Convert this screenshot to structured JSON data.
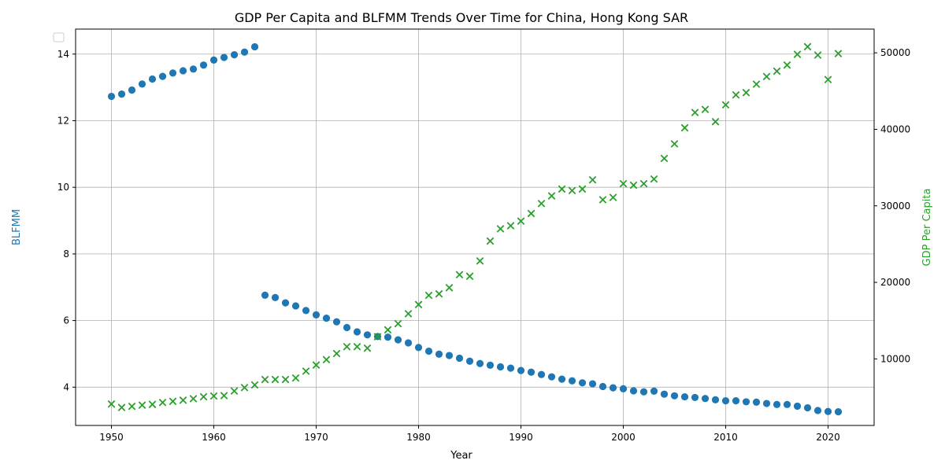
{
  "chart_data": {
    "type": "scatter",
    "title": "GDP Per Capita and BLFMM Trends Over Time for China, Hong Kong SAR",
    "xlabel": "Year",
    "ylabel_left": "BLFMM",
    "ylabel_right": "GDP Per Capita",
    "xlim": [
      1946.5,
      2024.5
    ],
    "ylim_left": [
      2.85,
      14.75
    ],
    "ylim_right": [
      1300,
      53100
    ],
    "x_ticks": [
      1950,
      1960,
      1970,
      1980,
      1990,
      2000,
      2010,
      2020
    ],
    "y_left_ticks": [
      4,
      6,
      8,
      10,
      12,
      14
    ],
    "y_right_ticks": [
      10000,
      20000,
      30000,
      40000,
      50000
    ],
    "grid": true,
    "legend": "upper-left (empty)",
    "colors": {
      "blfmm": "#1f77b4",
      "gdp": "#2ca02c"
    },
    "series": [
      {
        "key": "blfmm",
        "axis": "left",
        "marker": "circle",
        "points": [
          [
            1950,
            12.73
          ],
          [
            1951,
            12.8
          ],
          [
            1952,
            12.92
          ],
          [
            1953,
            13.1
          ],
          [
            1954,
            13.25
          ],
          [
            1955,
            13.33
          ],
          [
            1956,
            13.43
          ],
          [
            1957,
            13.5
          ],
          [
            1958,
            13.55
          ],
          [
            1959,
            13.67
          ],
          [
            1960,
            13.82
          ],
          [
            1961,
            13.9
          ],
          [
            1962,
            13.98
          ],
          [
            1963,
            14.06
          ],
          [
            1964,
            14.22
          ],
          [
            1965,
            6.76
          ],
          [
            1966,
            6.69
          ],
          [
            1967,
            6.53
          ],
          [
            1968,
            6.44
          ],
          [
            1969,
            6.3
          ],
          [
            1970,
            6.17
          ],
          [
            1971,
            6.07
          ],
          [
            1972,
            5.96
          ],
          [
            1973,
            5.79
          ],
          [
            1974,
            5.66
          ],
          [
            1975,
            5.57
          ],
          [
            1976,
            5.52
          ],
          [
            1977,
            5.5
          ],
          [
            1978,
            5.42
          ],
          [
            1979,
            5.33
          ],
          [
            1980,
            5.19
          ],
          [
            1981,
            5.08
          ],
          [
            1982,
            4.99
          ],
          [
            1983,
            4.95
          ],
          [
            1984,
            4.87
          ],
          [
            1985,
            4.78
          ],
          [
            1986,
            4.71
          ],
          [
            1987,
            4.66
          ],
          [
            1988,
            4.61
          ],
          [
            1989,
            4.57
          ],
          [
            1990,
            4.5
          ],
          [
            1991,
            4.45
          ],
          [
            1992,
            4.38
          ],
          [
            1993,
            4.31
          ],
          [
            1994,
            4.24
          ],
          [
            1995,
            4.19
          ],
          [
            1996,
            4.13
          ],
          [
            1997,
            4.1
          ],
          [
            1998,
            4.02
          ],
          [
            1999,
            3.98
          ],
          [
            2000,
            3.95
          ],
          [
            2001,
            3.89
          ],
          [
            2002,
            3.86
          ],
          [
            2003,
            3.88
          ],
          [
            2004,
            3.79
          ],
          [
            2005,
            3.74
          ],
          [
            2006,
            3.71
          ],
          [
            2007,
            3.69
          ],
          [
            2008,
            3.66
          ],
          [
            2009,
            3.62
          ],
          [
            2010,
            3.59
          ],
          [
            2011,
            3.59
          ],
          [
            2012,
            3.56
          ],
          [
            2013,
            3.55
          ],
          [
            2014,
            3.51
          ],
          [
            2015,
            3.48
          ],
          [
            2016,
            3.48
          ],
          [
            2017,
            3.43
          ],
          [
            2018,
            3.38
          ],
          [
            2019,
            3.3
          ],
          [
            2020,
            3.27
          ],
          [
            2021,
            3.26
          ]
        ]
      },
      {
        "key": "gdp",
        "axis": "right",
        "marker": "x",
        "points": [
          [
            1950,
            4100
          ],
          [
            1951,
            3650
          ],
          [
            1952,
            3800
          ],
          [
            1953,
            3950
          ],
          [
            1954,
            4050
          ],
          [
            1955,
            4300
          ],
          [
            1956,
            4450
          ],
          [
            1957,
            4600
          ],
          [
            1958,
            4800
          ],
          [
            1959,
            5050
          ],
          [
            1960,
            5150
          ],
          [
            1961,
            5200
          ],
          [
            1962,
            5800
          ],
          [
            1963,
            6250
          ],
          [
            1964,
            6600
          ],
          [
            1965,
            7300
          ],
          [
            1966,
            7300
          ],
          [
            1967,
            7300
          ],
          [
            1968,
            7500
          ],
          [
            1969,
            8400
          ],
          [
            1970,
            9200
          ],
          [
            1971,
            9900
          ],
          [
            1972,
            10700
          ],
          [
            1973,
            11600
          ],
          [
            1974,
            11600
          ],
          [
            1975,
            11400
          ],
          [
            1976,
            12900
          ],
          [
            1977,
            13800
          ],
          [
            1978,
            14600
          ],
          [
            1979,
            15900
          ],
          [
            1980,
            17100
          ],
          [
            1981,
            18300
          ],
          [
            1982,
            18500
          ],
          [
            1983,
            19300
          ],
          [
            1984,
            21000
          ],
          [
            1985,
            20800
          ],
          [
            1986,
            22800
          ],
          [
            1987,
            25400
          ],
          [
            1988,
            27000
          ],
          [
            1989,
            27400
          ],
          [
            1990,
            28000
          ],
          [
            1991,
            29000
          ],
          [
            1992,
            30300
          ],
          [
            1993,
            31300
          ],
          [
            1994,
            32200
          ],
          [
            1995,
            32000
          ],
          [
            1996,
            32200
          ],
          [
            1997,
            33400
          ],
          [
            1998,
            30800
          ],
          [
            1999,
            31100
          ],
          [
            2000,
            32900
          ],
          [
            2001,
            32700
          ],
          [
            2002,
            32900
          ],
          [
            2003,
            33500
          ],
          [
            2004,
            36200
          ],
          [
            2005,
            38100
          ],
          [
            2006,
            40200
          ],
          [
            2007,
            42200
          ],
          [
            2008,
            42600
          ],
          [
            2009,
            41000
          ],
          [
            2010,
            43200
          ],
          [
            2011,
            44500
          ],
          [
            2012,
            44800
          ],
          [
            2013,
            45900
          ],
          [
            2014,
            46900
          ],
          [
            2015,
            47600
          ],
          [
            2016,
            48400
          ],
          [
            2017,
            49800
          ],
          [
            2018,
            50800
          ],
          [
            2019,
            49700
          ],
          [
            2020,
            46500
          ],
          [
            2021,
            49900
          ]
        ]
      }
    ]
  }
}
